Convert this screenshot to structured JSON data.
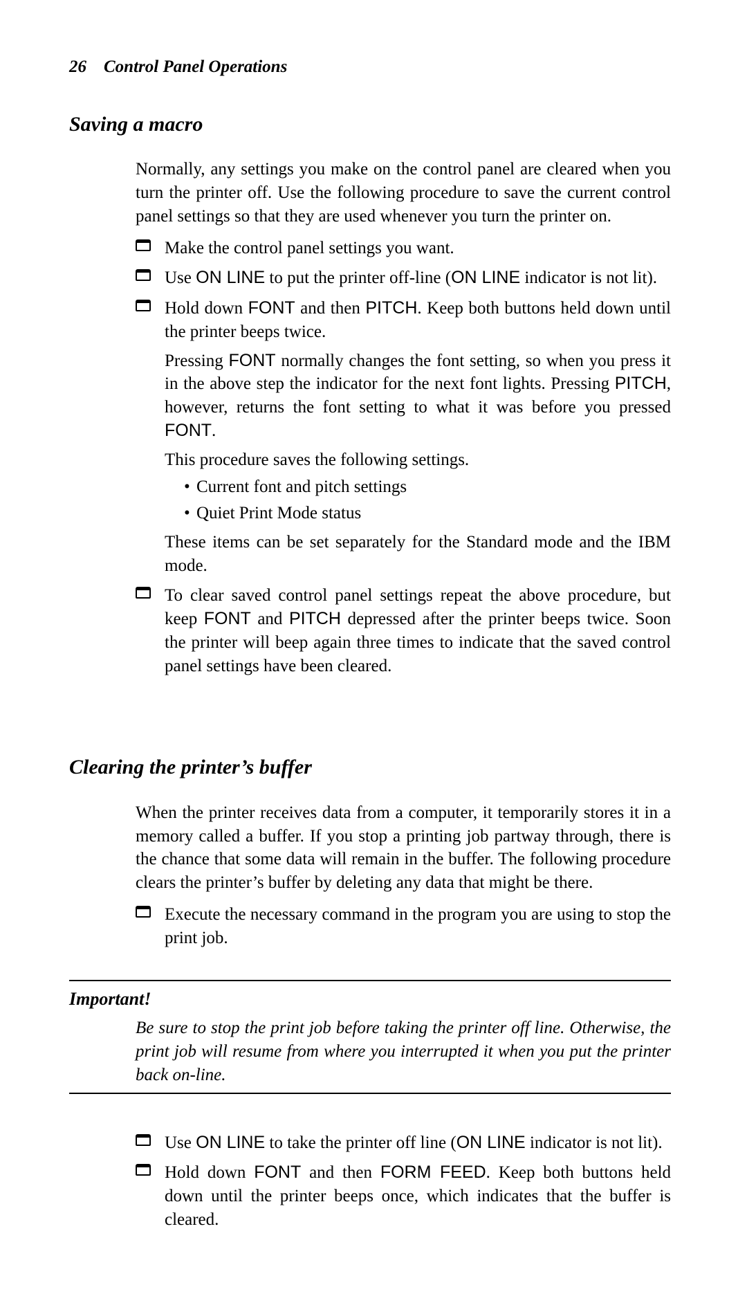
{
  "header": {
    "page_number": "26",
    "title": "Control Panel Operations"
  },
  "section1": {
    "heading": "Saving a macro",
    "intro": "Normally, any settings you make on the control panel are cleared when you turn the printer off. Use the following procedure to save the current control panel settings so that they are used whenever you turn the printer on.",
    "items": {
      "i0": {
        "body": "Make the control panel settings you want."
      },
      "i1": {
        "p1a": "Use ",
        "btn1": "ON LINE",
        "p1b": " to put the printer off-line (",
        "btn2": "ON LINE",
        "p1c": " indicator is not lit)."
      },
      "i2": {
        "p1a": "Hold down ",
        "btn1": "FONT",
        "p1b": " and then ",
        "btn2": "PITCH",
        "p1c": ". Keep both buttons held down until the printer beeps twice.",
        "extra1a": "Pressing ",
        "btn3": "FONT",
        "extra1b": " normally changes the font setting, so when you press it in the above step the indicator for the next font lights. Pressing ",
        "btn4": "PITCH",
        "extra1c": ", however, returns the font setting to what it was before you pressed ",
        "btn5": "FONT",
        "extra1d": ".",
        "extra2": "This procedure saves the following settings.",
        "bullets": {
          "b0": "Current font and pitch settings",
          "b1": "Quiet Print Mode status"
        },
        "extra3": "These items can be set separately for the Standard mode and the IBM mode."
      },
      "i3": {
        "p1a": "To clear saved control panel settings repeat the above procedure, but keep ",
        "btn1": "FONT",
        "p1b": " and ",
        "btn2": "PITCH",
        "p1c": " depressed after the printer beeps twice. Soon the printer will beep again three times to indicate that the saved control panel settings have been cleared."
      }
    }
  },
  "section2": {
    "heading": "Clearing the printer’s buffer",
    "intro": "When the printer receives data from a computer, it temporarily stores it in a memory called a buffer. If you stop a printing job partway through, there is the chance that some data will remain in the buffer. The following procedure clears the printer’s buffer by deleting any data that might be there.",
    "items": {
      "i0": {
        "body": "Execute the necessary command in the program you are using to stop the print job."
      }
    }
  },
  "callout": {
    "heading": "Important!",
    "body": "Be sure to stop the print job before taking the printer off line. Otherwise, the print job will resume from where you interrupted it when you put the printer back on-line."
  },
  "section2b": {
    "items": {
      "i0": {
        "p1a": "Use ",
        "btn1": "ON LINE",
        "p1b": " to take the printer off line (",
        "btn2": "ON LINE",
        "p1c": " indicator is not lit)."
      },
      "i1": {
        "p1a": "Hold down ",
        "btn1": "FONT",
        "p1b": " and then ",
        "btn2": "FORM FEED",
        "p1c": ". Keep both buttons held down until the printer beeps once, which indicates that the buffer is cleared."
      }
    }
  },
  "colors": {
    "text": "#000000",
    "background": "#ffffff",
    "rule": "#000000"
  },
  "typography": {
    "body_family": "Georgia/Times serif",
    "body_size_pt": 12,
    "heading_size_pt": 14,
    "button_family": "Arial/Helvetica sans-serif"
  }
}
